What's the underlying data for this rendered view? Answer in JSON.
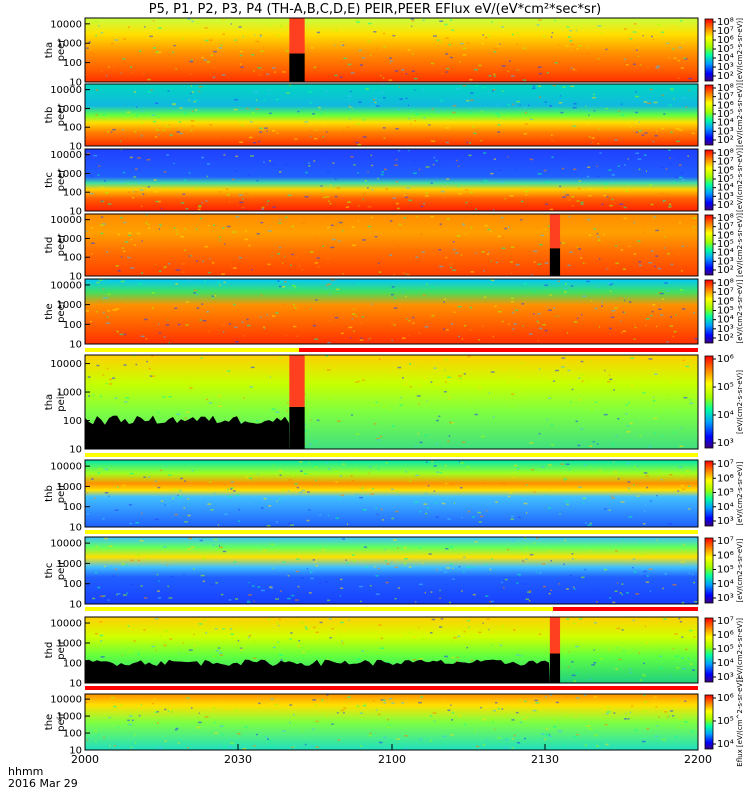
{
  "title": "P5, P1, P2, P3, P4 (TH-A,B,C,D,E) PEIR,PEER EFlux eV/(eV*cm²*sec*sr)",
  "time_caption": {
    "line1": "hhmm",
    "line2": "2016 Mar 29"
  },
  "x_ticks": [
    "2000",
    "2030",
    "2100",
    "2130",
    "2200"
  ],
  "colorbar_label_long": "Eflux [eV/(cm^2-s-sr-eV)]",
  "colorbar_label_short": "[eV/(cm2-s-sr-eV)]",
  "chart_data": [
    {
      "type": "heatmap",
      "panel": "tha peer",
      "ylabel": [
        "tha",
        "peer"
      ],
      "y_scale": "log",
      "ylim": [
        10,
        20000
      ],
      "y_ticks": [
        "10000",
        "1000",
        "100",
        "10"
      ],
      "colorbar_ticks": [
        "10⁸",
        "10⁷",
        "10⁶",
        "10⁵",
        "10⁴",
        "10³",
        "10²"
      ],
      "data_gap": {
        "x_range": [
          "2040",
          "2043"
        ],
        "y_range": [
          10,
          300
        ]
      }
    },
    {
      "type": "heatmap",
      "panel": "thb peer",
      "ylabel": [
        "thb",
        "peer"
      ],
      "y_scale": "log",
      "ylim": [
        10,
        20000
      ],
      "y_ticks": [
        "10000",
        "1000",
        "100",
        "10"
      ],
      "colorbar_ticks": [
        "10⁸",
        "10⁷",
        "10⁶",
        "10⁵",
        "10⁴",
        "10³",
        "10²"
      ]
    },
    {
      "type": "heatmap",
      "panel": "thc peer",
      "ylabel": [
        "thc",
        "peer"
      ],
      "y_scale": "log",
      "ylim": [
        10,
        20000
      ],
      "y_ticks": [
        "10000",
        "1000",
        "100",
        "10"
      ],
      "colorbar_ticks": [
        "10⁸",
        "10⁷",
        "10⁶",
        "10⁵",
        "10⁴",
        "10³",
        "10²"
      ]
    },
    {
      "type": "heatmap",
      "panel": "thd peer",
      "ylabel": [
        "thd",
        "peer"
      ],
      "y_scale": "log",
      "ylim": [
        10,
        20000
      ],
      "y_ticks": [
        "10000",
        "1000",
        "100",
        "10"
      ],
      "colorbar_ticks": [
        "10⁸",
        "10⁷",
        "10⁶",
        "10⁵",
        "10⁴",
        "10³",
        "10²"
      ],
      "data_gap": {
        "x_range": [
          "2131",
          "2133"
        ],
        "y_range": [
          10,
          300
        ]
      }
    },
    {
      "type": "heatmap",
      "panel": "the peer",
      "ylabel": [
        "the",
        "peer"
      ],
      "y_scale": "log",
      "ylim": [
        10,
        20000
      ],
      "y_ticks": [
        "10000",
        "1000",
        "100",
        "10"
      ],
      "colorbar_ticks": [
        "10⁸",
        "10⁷",
        "10⁶",
        "10⁵",
        "10⁴",
        "10³",
        "10²"
      ]
    },
    {
      "type": "heatmap",
      "panel": "tha peir",
      "ylabel": [
        "tha",
        "peir"
      ],
      "y_scale": "log",
      "ylim": [
        10,
        20000
      ],
      "y_ticks": [
        "10000",
        "1000",
        "100",
        "10"
      ],
      "colorbar_ticks": [
        "10⁶",
        "10⁵",
        "10⁴",
        "10³"
      ],
      "data_gap": {
        "x_range": [
          "2040",
          "2043"
        ],
        "y_range": [
          10,
          300
        ]
      }
    },
    {
      "type": "heatmap",
      "panel": "thb peir",
      "ylabel": [
        "thb",
        "peir"
      ],
      "y_scale": "log",
      "ylim": [
        10,
        20000
      ],
      "y_ticks": [
        "10000",
        "1000",
        "100",
        "10"
      ],
      "colorbar_ticks": [
        "10⁷",
        "10⁶",
        "10⁵",
        "10⁴",
        "10³"
      ]
    },
    {
      "type": "heatmap",
      "panel": "thc peir",
      "ylabel": [
        "thc",
        "peir"
      ],
      "y_scale": "log",
      "ylim": [
        10,
        20000
      ],
      "y_ticks": [
        "10000",
        "1000",
        "100",
        "10"
      ],
      "colorbar_ticks": [
        "10⁷",
        "10⁶",
        "10⁵",
        "10⁴",
        "10³"
      ]
    },
    {
      "type": "heatmap",
      "panel": "thd peir",
      "ylabel": [
        "thd",
        "peir"
      ],
      "y_scale": "log",
      "ylim": [
        10,
        20000
      ],
      "y_ticks": [
        "10000",
        "1000",
        "100",
        "10"
      ],
      "colorbar_ticks": [
        "10⁷",
        "10⁶",
        "10⁵",
        "10⁴",
        "10³"
      ],
      "data_gap": {
        "x_range": [
          "2131",
          "2133"
        ],
        "y_range": [
          10,
          300
        ]
      }
    },
    {
      "type": "heatmap",
      "panel": "the peir",
      "ylabel": [
        "the",
        "peir"
      ],
      "y_scale": "log",
      "ylim": [
        10,
        20000
      ],
      "y_ticks": [
        "10000",
        "1000",
        "100",
        "10"
      ],
      "colorbar_ticks": [
        "10⁶",
        "10⁵",
        "10⁴"
      ]
    }
  ]
}
